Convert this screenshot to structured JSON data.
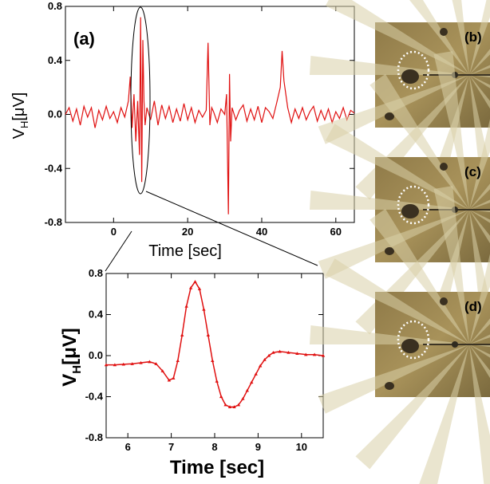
{
  "chart_data": [
    {
      "type": "line",
      "panel_label": "(a)",
      "xlabel": "Time [sec]",
      "ylabel_main": "V",
      "ylabel_sub": "H",
      "ylabel_unit": "[μV]",
      "xlim": [
        -13,
        65
      ],
      "ylim": [
        -0.8,
        0.8
      ],
      "xticks": [
        0,
        20,
        40,
        60
      ],
      "xtick_labels": [
        "0",
        "20",
        "40",
        "60"
      ],
      "yticks": [
        0.8,
        0.4,
        0.0,
        -0.4,
        -0.8
      ],
      "ytick_labels": [
        "0.8",
        "0.4",
        "0.0",
        "-0.4",
        "-0.8"
      ],
      "color": "#e01010",
      "series": [
        {
          "x": [
            -13,
            -12,
            -11,
            -10,
            -9,
            -8,
            -7,
            -6,
            -5,
            -4,
            -3,
            -2,
            -1,
            0,
            1,
            2,
            3,
            4,
            4.5,
            5,
            5.5,
            6,
            6.5,
            7,
            7.3,
            7.6,
            7.9,
            8.2,
            8.5,
            9,
            10,
            11,
            12,
            13,
            14,
            15,
            16,
            17,
            18,
            19,
            20,
            21,
            22,
            23,
            24,
            25,
            25.5,
            26,
            26.5,
            27,
            28,
            29,
            30,
            30.5,
            31,
            31.3,
            31.6,
            32,
            33,
            34,
            35,
            36,
            37,
            38,
            39,
            40,
            41,
            42,
            43,
            44,
            45,
            45.5,
            46,
            47,
            48,
            49,
            50,
            51,
            52,
            53,
            54,
            55,
            56,
            57,
            58,
            59,
            60,
            61,
            62,
            63,
            64,
            65
          ],
          "y": [
            0.0,
            0.05,
            -0.05,
            0.04,
            -0.08,
            0.06,
            -0.02,
            0.05,
            -0.1,
            0.03,
            -0.04,
            0.06,
            -0.03,
            0.02,
            -0.06,
            0.05,
            -0.02,
            0.1,
            0.28,
            -0.1,
            0.15,
            -0.2,
            0.1,
            -0.3,
            0.72,
            -0.5,
            0.55,
            0.1,
            -0.08,
            0.05,
            -0.04,
            0.1,
            -0.08,
            0.07,
            -0.03,
            0.06,
            -0.06,
            0.04,
            -0.05,
            0.08,
            -0.04,
            0.05,
            -0.06,
            0.03,
            -0.02,
            0.03,
            0.53,
            -0.08,
            0.05,
            0.02,
            -0.06,
            0.04,
            0.0,
            0.15,
            -0.74,
            0.3,
            -0.2,
            0.05,
            -0.04,
            0.03,
            0.07,
            -0.05,
            0.04,
            -0.04,
            0.06,
            -0.06,
            0.05,
            0.02,
            -0.03,
            0.08,
            0.2,
            0.47,
            0.25,
            0.05,
            -0.06,
            0.04,
            -0.03,
            0.05,
            -0.04,
            0.02,
            0.06,
            -0.05,
            0.03,
            -0.04,
            0.04,
            -0.06,
            0.02,
            -0.03,
            0.05,
            -0.04,
            0.03,
            0.01
          ]
        }
      ]
    },
    {
      "type": "line",
      "xlabel": "Time [sec]",
      "ylabel_main": "V",
      "ylabel_sub": "H",
      "ylabel_unit": "[μV]",
      "xlim": [
        5.5,
        10.5
      ],
      "ylim": [
        -0.8,
        0.8
      ],
      "xticks": [
        6,
        7,
        8,
        9,
        10
      ],
      "xtick_labels": [
        "6",
        "7",
        "8",
        "9",
        "10"
      ],
      "yticks": [
        0.8,
        0.4,
        0.0,
        -0.4,
        -0.8
      ],
      "ytick_labels": [
        "0.8",
        "0.4",
        "0.0",
        "-0.4",
        "-0.8"
      ],
      "color": "#e01010",
      "series": [
        {
          "x": [
            5.5,
            5.7,
            5.9,
            6.1,
            6.3,
            6.5,
            6.65,
            6.8,
            6.95,
            7.05,
            7.15,
            7.25,
            7.35,
            7.45,
            7.55,
            7.65,
            7.75,
            7.85,
            7.95,
            8.05,
            8.15,
            8.25,
            8.35,
            8.45,
            8.55,
            8.65,
            8.75,
            8.85,
            8.95,
            9.05,
            9.15,
            9.25,
            9.35,
            9.5,
            9.7,
            9.9,
            10.1,
            10.3,
            10.5
          ],
          "y": [
            -0.09,
            -0.09,
            -0.085,
            -0.08,
            -0.07,
            -0.06,
            -0.08,
            -0.15,
            -0.24,
            -0.22,
            -0.05,
            0.2,
            0.48,
            0.66,
            0.72,
            0.65,
            0.45,
            0.2,
            -0.05,
            -0.25,
            -0.4,
            -0.48,
            -0.5,
            -0.5,
            -0.48,
            -0.42,
            -0.34,
            -0.26,
            -0.18,
            -0.1,
            -0.04,
            0.0,
            0.03,
            0.04,
            0.03,
            0.02,
            0.01,
            0.01,
            0.0
          ]
        }
      ]
    }
  ],
  "photos": [
    {
      "label": "(b)"
    },
    {
      "label": "(c)"
    },
    {
      "label": "(d)"
    }
  ]
}
